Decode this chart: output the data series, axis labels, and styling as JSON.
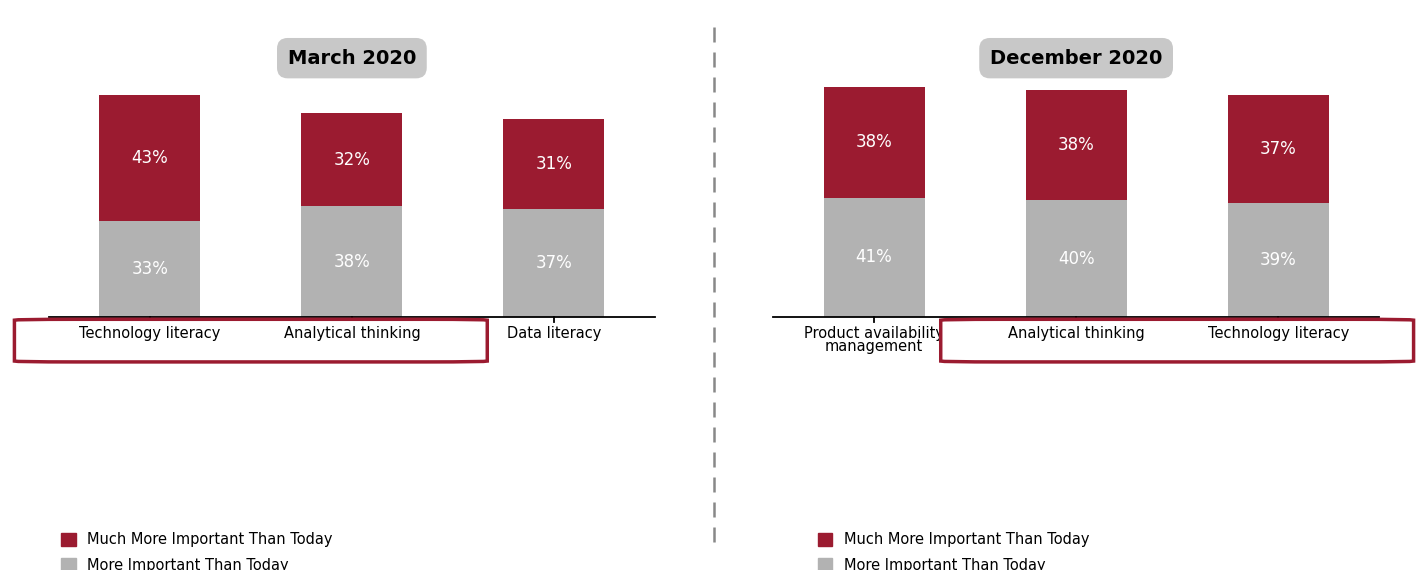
{
  "march_categories": [
    "Technology literacy",
    "Analytical thinking",
    "Data literacy"
  ],
  "march_more": [
    33,
    38,
    37
  ],
  "march_much_more": [
    43,
    32,
    31
  ],
  "dec_categories": [
    "Product availability\nmanagement",
    "Analytical thinking",
    "Technology literacy"
  ],
  "dec_more": [
    41,
    40,
    39
  ],
  "dec_much_more": [
    38,
    38,
    37
  ],
  "color_more": "#b2b2b2",
  "color_much_more": "#9b1b30",
  "title_march": "March 2020",
  "title_dec": "December 2020",
  "title_bg_color": "#c8c8c8",
  "legend_much_more": "Much More Important Than Today",
  "legend_more": "More Important Than Today",
  "march_highlight": [
    0,
    1
  ],
  "dec_highlight": [
    1,
    2
  ],
  "bar_width": 0.5,
  "highlight_color": "#9b1b30",
  "highlight_linewidth": 2.5
}
